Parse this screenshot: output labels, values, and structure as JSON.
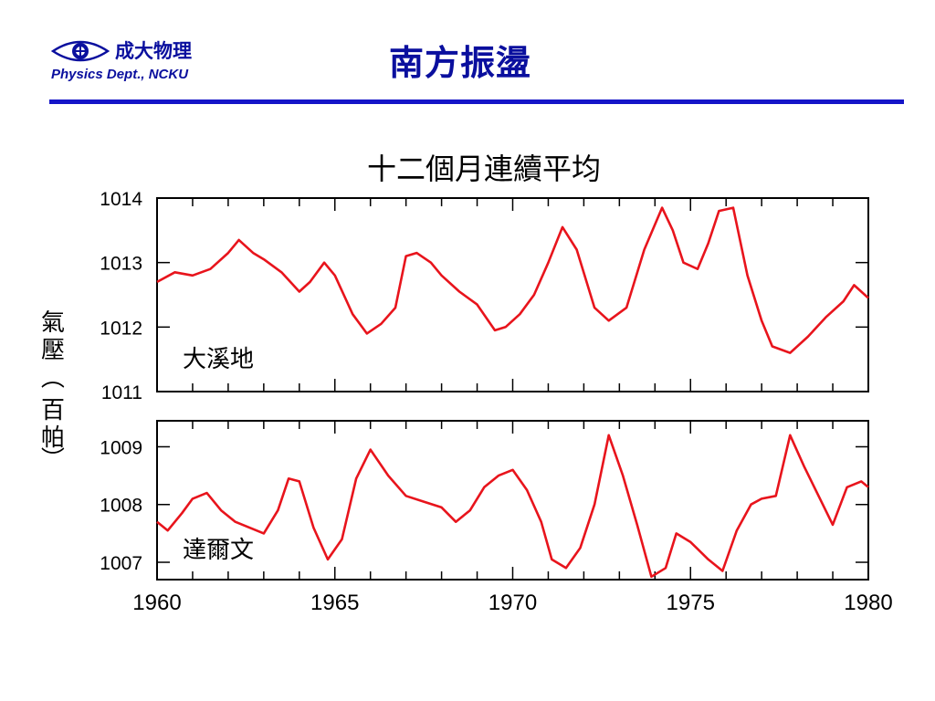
{
  "header": {
    "logo_text_cn": "成大物理",
    "logo_text_en": "Physics Dept., NCKU",
    "title": "南方振盪",
    "logo_icon": "eye-icon",
    "accent_color": "#0a0f9e",
    "rule_color": "#1515c8"
  },
  "chart_data": {
    "type": "line",
    "title": "十二個月連續平均",
    "ylabel": "氣壓（百帕）",
    "xlabel": "",
    "x_ticks": [
      "1960",
      "1965",
      "1970",
      "1975",
      "1980"
    ],
    "xlim": [
      1960,
      1980
    ],
    "line_color": "#e8141c",
    "panels": [
      {
        "label": "大溪地",
        "ylim": [
          1011,
          1014
        ],
        "y_ticks": [
          "1014",
          "1013",
          "1012",
          "1011"
        ],
        "x": [
          1960,
          1960.5,
          1961,
          1961.5,
          1962,
          1962.3,
          1962.7,
          1963,
          1963.5,
          1964,
          1964.3,
          1964.7,
          1965,
          1965.5,
          1965.9,
          1966.3,
          1966.7,
          1967,
          1967.3,
          1967.7,
          1968,
          1968.5,
          1969,
          1969.5,
          1969.8,
          1970.2,
          1970.6,
          1971,
          1971.4,
          1971.8,
          1972.3,
          1972.7,
          1973.2,
          1973.7,
          1974.2,
          1974.5,
          1974.8,
          1975.2,
          1975.5,
          1975.8,
          1976.2,
          1976.6,
          1977,
          1977.3,
          1977.8,
          1978.3,
          1978.8,
          1979.3,
          1979.6,
          1980
        ],
        "y": [
          1012.7,
          1012.85,
          1012.8,
          1012.9,
          1013.15,
          1013.35,
          1013.15,
          1013.05,
          1012.85,
          1012.55,
          1012.7,
          1013.0,
          1012.8,
          1012.2,
          1011.9,
          1012.05,
          1012.3,
          1013.1,
          1013.15,
          1013.0,
          1012.8,
          1012.55,
          1012.35,
          1011.95,
          1012.0,
          1012.2,
          1012.5,
          1013.0,
          1013.55,
          1013.2,
          1012.3,
          1012.1,
          1012.3,
          1013.2,
          1013.85,
          1013.5,
          1013.0,
          1012.9,
          1013.3,
          1013.8,
          1013.85,
          1012.8,
          1012.1,
          1011.7,
          1011.6,
          1011.85,
          1012.15,
          1012.4,
          1012.65,
          1012.45
        ]
      },
      {
        "label": "達爾文",
        "ylim": [
          1006.7,
          1009.45
        ],
        "y_ticks": [
          "1009",
          "1008",
          "1007"
        ],
        "x": [
          1960,
          1960.3,
          1960.7,
          1961,
          1961.4,
          1961.8,
          1962.2,
          1962.6,
          1963,
          1963.4,
          1963.7,
          1964,
          1964.4,
          1964.8,
          1965.2,
          1965.6,
          1966,
          1966.5,
          1967,
          1967.5,
          1968,
          1968.4,
          1968.8,
          1969.2,
          1969.6,
          1970,
          1970.4,
          1970.8,
          1971.1,
          1971.5,
          1971.9,
          1972.3,
          1972.7,
          1973.1,
          1973.5,
          1973.9,
          1974.3,
          1974.6,
          1975,
          1975.5,
          1975.9,
          1976.3,
          1976.7,
          1977,
          1977.4,
          1977.8,
          1978.2,
          1978.6,
          1979,
          1979.4,
          1979.8,
          1980
        ],
        "y": [
          1007.7,
          1007.55,
          1007.85,
          1008.1,
          1008.2,
          1007.9,
          1007.7,
          1007.6,
          1007.5,
          1007.9,
          1008.45,
          1008.4,
          1007.6,
          1007.05,
          1007.4,
          1008.45,
          1008.95,
          1008.5,
          1008.15,
          1008.05,
          1007.95,
          1007.7,
          1007.9,
          1008.3,
          1008.5,
          1008.6,
          1008.25,
          1007.7,
          1007.05,
          1006.9,
          1007.25,
          1008.0,
          1009.2,
          1008.5,
          1007.65,
          1006.75,
          1006.9,
          1007.5,
          1007.35,
          1007.05,
          1006.85,
          1007.55,
          1008.0,
          1008.1,
          1008.15,
          1009.2,
          1008.65,
          1008.15,
          1007.65,
          1008.3,
          1008.4,
          1008.3
        ]
      }
    ]
  }
}
